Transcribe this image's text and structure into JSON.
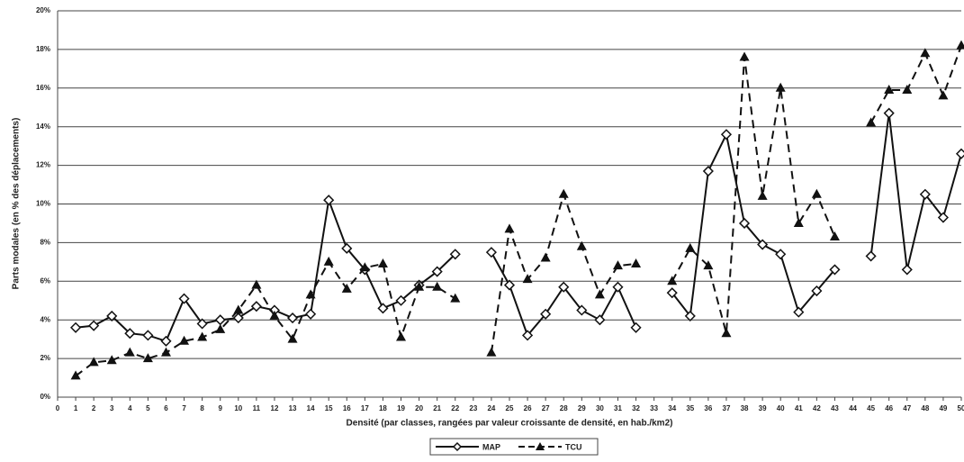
{
  "chart_data": {
    "type": "line",
    "xlabel": "Densité (par classes, rangées par valeur croissante de densité, en hab./km2)",
    "ylabel": "Parts modales (en % des déplacements)",
    "x": [
      1,
      2,
      3,
      4,
      5,
      6,
      7,
      8,
      9,
      10,
      11,
      12,
      13,
      14,
      15,
      16,
      17,
      18,
      19,
      20,
      21,
      22,
      23,
      24,
      25,
      26,
      27,
      28,
      29,
      30,
      31,
      32,
      33,
      34,
      35,
      36,
      37,
      38,
      39,
      40,
      41,
      42,
      43,
      44,
      45,
      46,
      47,
      48,
      49,
      50
    ],
    "series": [
      {
        "name": "MAP",
        "color": "#111111",
        "marker": "diamond",
        "dash": false,
        "values": [
          3.6,
          3.7,
          4.2,
          3.3,
          3.2,
          2.9,
          5.1,
          3.8,
          4.0,
          4.1,
          4.7,
          4.5,
          4.1,
          4.3,
          10.2,
          7.7,
          6.6,
          4.6,
          5.0,
          5.8,
          6.5,
          7.4,
          null,
          7.5,
          5.8,
          3.2,
          4.3,
          5.7,
          4.5,
          4.0,
          5.7,
          3.6,
          null,
          5.4,
          4.2,
          11.7,
          13.6,
          9.0,
          7.9,
          7.4,
          4.4,
          5.5,
          6.6,
          null,
          7.3,
          14.7,
          6.6,
          10.5,
          9.3,
          12.6
        ]
      },
      {
        "name": "TCU",
        "color": "#111111",
        "marker": "triangle",
        "dash": true,
        "values": [
          1.1,
          1.8,
          1.9,
          2.3,
          2.0,
          2.3,
          2.9,
          3.1,
          3.5,
          4.5,
          5.8,
          4.2,
          3.0,
          5.3,
          7.0,
          5.6,
          6.7,
          6.9,
          3.1,
          5.7,
          5.7,
          5.1,
          null,
          2.3,
          8.7,
          6.1,
          7.2,
          10.5,
          7.8,
          5.3,
          6.8,
          6.9,
          null,
          6.0,
          7.7,
          6.8,
          3.3,
          17.6,
          10.4,
          16.0,
          9.0,
          10.5,
          8.3,
          null,
          14.2,
          15.9,
          15.9,
          17.8,
          15.6,
          18.2
        ]
      }
    ],
    "xlim": [
      0,
      50
    ],
    "xticks": [
      0,
      1,
      2,
      3,
      4,
      5,
      6,
      7,
      8,
      9,
      10,
      11,
      12,
      13,
      14,
      15,
      16,
      17,
      18,
      19,
      20,
      21,
      22,
      23,
      24,
      25,
      26,
      27,
      28,
      29,
      30,
      31,
      32,
      33,
      34,
      35,
      36,
      37,
      38,
      39,
      40,
      41,
      42,
      43,
      44,
      45,
      46,
      47,
      48,
      49,
      50
    ],
    "ylim": [
      0,
      20
    ],
    "yticks": [
      {
        "value": 0,
        "label": "0%"
      },
      {
        "value": 2,
        "label": "2%"
      },
      {
        "value": 4,
        "label": "4%"
      },
      {
        "value": 6,
        "label": "6%"
      },
      {
        "value": 8,
        "label": "8%"
      },
      {
        "value": 10,
        "label": "10%"
      },
      {
        "value": 12,
        "label": "12%"
      },
      {
        "value": 14,
        "label": "14%"
      },
      {
        "value": 16,
        "label": "16%"
      },
      {
        "value": 18,
        "label": "18%"
      },
      {
        "value": 20,
        "label": "20%"
      }
    ],
    "grid": true,
    "legend": "bottom"
  }
}
